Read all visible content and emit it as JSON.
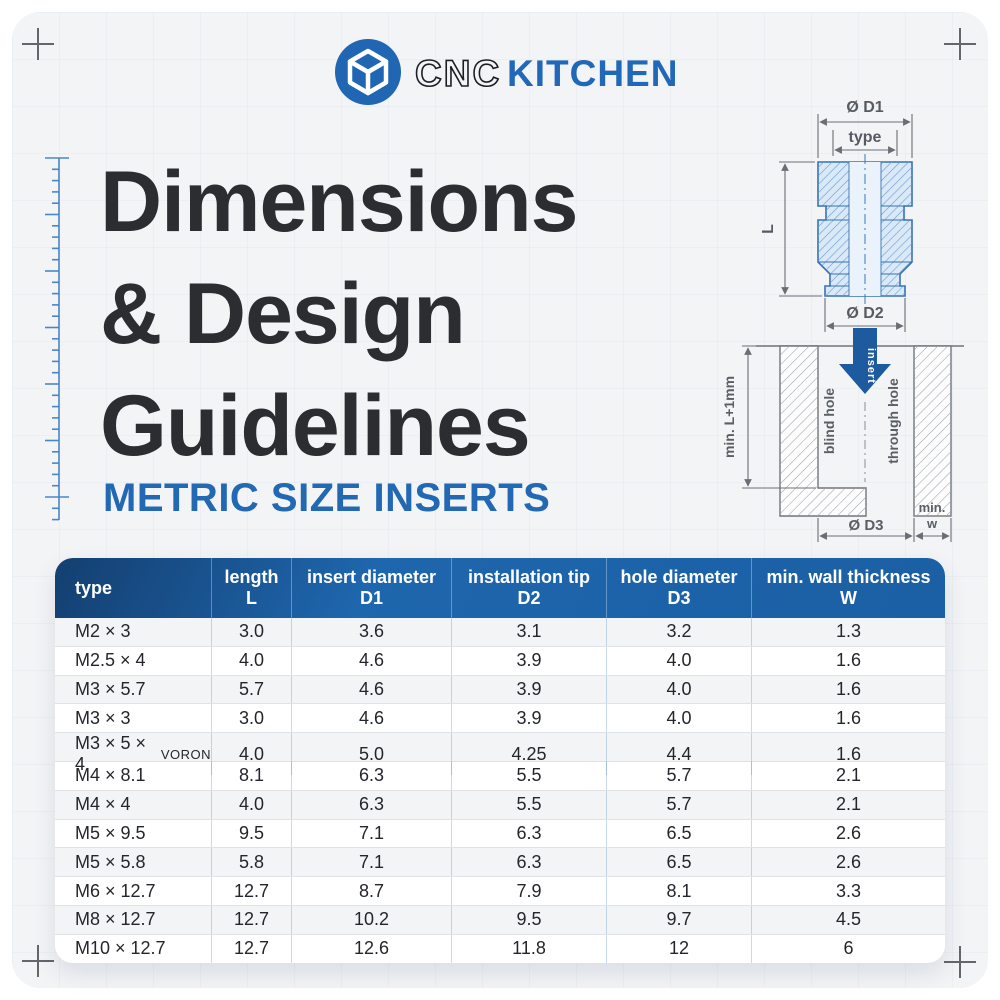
{
  "brand": {
    "name_part1": "CNC",
    "name_part2": "KITCHEN",
    "logo_color": "#2166b2"
  },
  "title": {
    "line1": "Dimensions",
    "line2": "& Design",
    "line3": "Guidelines",
    "subtitle": "METRIC SIZE INSERTS"
  },
  "colors": {
    "accent_blue": "#2268b2",
    "table_header_blue": "#1d63a9",
    "title_black": "#2b2d31",
    "diagram_fill": "#d9e9f8",
    "diagram_stroke": "#3672b3",
    "insert_arrow_blue": "#1d5a9e"
  },
  "diagram_insert": {
    "d1_label": "Ø D1",
    "type_label": "type",
    "l_label": "L",
    "d2_label": "Ø D2"
  },
  "diagram_hole": {
    "min_l_label": "min. L+1mm",
    "insert_label": "insert",
    "blind_label": "blind hole",
    "through_label": "through hole",
    "d3_label": "Ø D3",
    "min_w_line1": "min.",
    "min_w_line2": "w"
  },
  "table": {
    "headers": [
      {
        "title": "type",
        "sub": ""
      },
      {
        "title": "length",
        "sub": "L"
      },
      {
        "title": "insert diameter",
        "sub": "D1"
      },
      {
        "title": "installation tip",
        "sub": "D2"
      },
      {
        "title": "hole diameter",
        "sub": "D3"
      },
      {
        "title": "min. wall thickness",
        "sub": "W"
      }
    ],
    "rows": [
      {
        "type": "M2 × 3",
        "suffix": "",
        "values": [
          "3.0",
          "3.6",
          "3.1",
          "3.2",
          "1.3"
        ]
      },
      {
        "type": "M2.5 × 4",
        "suffix": "",
        "values": [
          "4.0",
          "4.6",
          "3.9",
          "4.0",
          "1.6"
        ]
      },
      {
        "type": "M3 × 5.7",
        "suffix": "",
        "values": [
          "5.7",
          "4.6",
          "3.9",
          "4.0",
          "1.6"
        ]
      },
      {
        "type": "M3 × 3",
        "suffix": "",
        "values": [
          "3.0",
          "4.6",
          "3.9",
          "4.0",
          "1.6"
        ]
      },
      {
        "type": "M3 × 5 × 4",
        "suffix": "VORON",
        "values": [
          "4.0",
          "5.0",
          "4.25",
          "4.4",
          "1.6"
        ]
      },
      {
        "type": "M4 × 8.1",
        "suffix": "",
        "values": [
          "8.1",
          "6.3",
          "5.5",
          "5.7",
          "2.1"
        ]
      },
      {
        "type": "M4 × 4",
        "suffix": "",
        "values": [
          "4.0",
          "6.3",
          "5.5",
          "5.7",
          "2.1"
        ]
      },
      {
        "type": "M5 × 9.5",
        "suffix": "",
        "values": [
          "9.5",
          "7.1",
          "6.3",
          "6.5",
          "2.6"
        ]
      },
      {
        "type": "M5 × 5.8",
        "suffix": "",
        "values": [
          "5.8",
          "7.1",
          "6.3",
          "6.5",
          "2.6"
        ]
      },
      {
        "type": "M6 × 12.7",
        "suffix": "",
        "values": [
          "12.7",
          "8.7",
          "7.9",
          "8.1",
          "3.3"
        ]
      },
      {
        "type": "M8 × 12.7",
        "suffix": "",
        "values": [
          "12.7",
          "10.2",
          "9.5",
          "9.7",
          "4.5"
        ]
      },
      {
        "type": "M10 × 12.7",
        "suffix": "",
        "values": [
          "12.7",
          "12.6",
          "11.8",
          "12",
          "6"
        ]
      }
    ]
  }
}
